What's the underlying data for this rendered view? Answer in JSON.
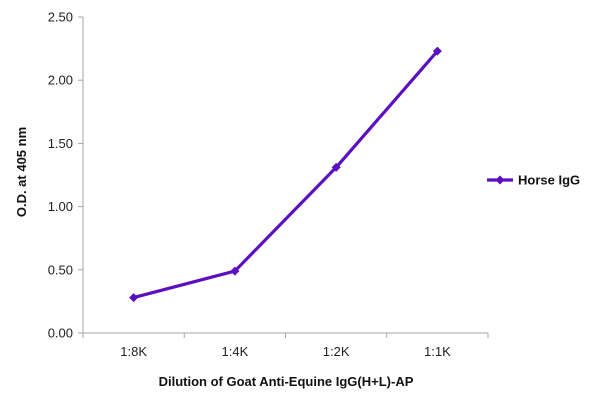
{
  "chart_data": {
    "type": "line",
    "categories": [
      "1:8K",
      "1:4K",
      "1:2K",
      "1:1K"
    ],
    "series": [
      {
        "name": "Horse IgG",
        "values": [
          0.28,
          0.49,
          1.31,
          2.23
        ],
        "color": "#5b0fc0"
      }
    ],
    "xlabel": "Dilution of Goat Anti-Equine IgG(H+L)-AP",
    "ylabel": "O.D. at 405 nm",
    "ylim": [
      0,
      2.5
    ],
    "yticks": [
      "0.00",
      "0.50",
      "1.00",
      "1.50",
      "2.00",
      "2.50"
    ],
    "grid": false,
    "legend": "right",
    "marker": "diamond"
  }
}
